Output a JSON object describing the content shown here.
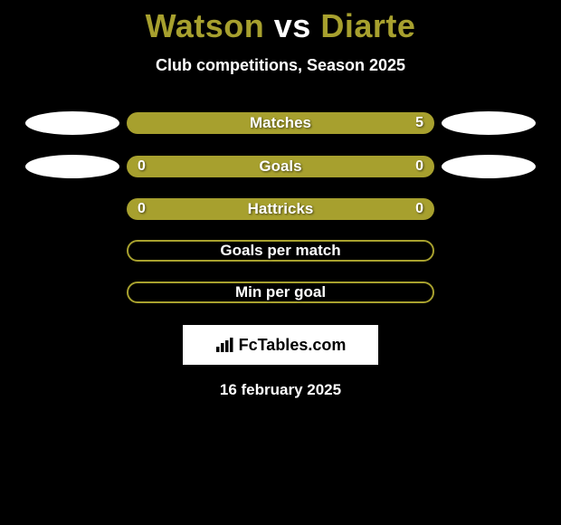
{
  "title": {
    "left": "Watson",
    "mid": " vs ",
    "right": "Diarte",
    "left_color": "#a7a02e",
    "mid_color": "#ffffff",
    "right_color": "#a7a02e"
  },
  "subtitle": "Club competitions, Season 2025",
  "bar_color": "#a7a02e",
  "rows": [
    {
      "label": "Matches",
      "filled": true,
      "left_val": "",
      "right_val": "5",
      "left_oval": true,
      "right_oval": true
    },
    {
      "label": "Goals",
      "filled": true,
      "left_val": "0",
      "right_val": "0",
      "left_oval": true,
      "right_oval": true
    },
    {
      "label": "Hattricks",
      "filled": true,
      "left_val": "0",
      "right_val": "0",
      "left_oval": false,
      "right_oval": false
    },
    {
      "label": "Goals per match",
      "filled": false,
      "left_val": "",
      "right_val": "",
      "left_oval": false,
      "right_oval": false
    },
    {
      "label": "Min per goal",
      "filled": false,
      "left_val": "",
      "right_val": "",
      "left_oval": false,
      "right_oval": false
    }
  ],
  "brand": "FcTables.com",
  "date": "16 february 2025"
}
